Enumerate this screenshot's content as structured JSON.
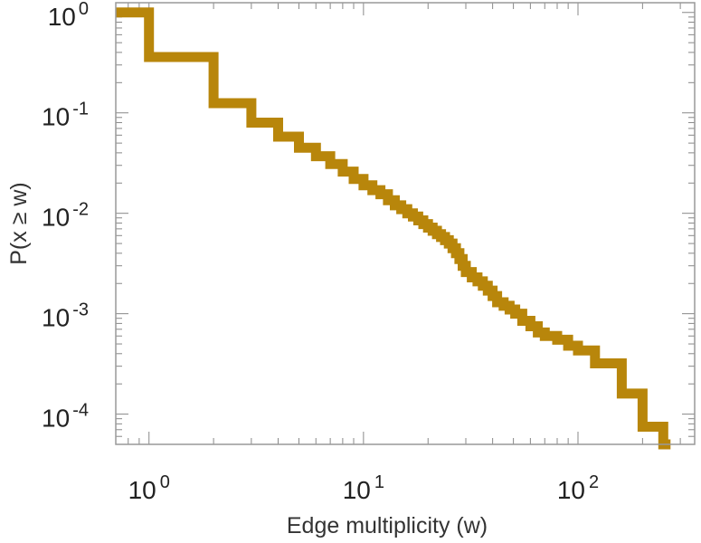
{
  "chart_data": {
    "type": "line",
    "title": "",
    "xlabel": "Edge multiplicity (w)",
    "ylabel": "P(x ≥ w)",
    "xscale": "log",
    "yscale": "log",
    "xlim": [
      0.7,
      350
    ],
    "ylim": [
      5e-05,
      1.25
    ],
    "grid": false,
    "legend": "none",
    "x_ticks": [
      {
        "base": "10",
        "exp": "0",
        "value": 1
      },
      {
        "base": "10",
        "exp": "1",
        "value": 10
      },
      {
        "base": "10",
        "exp": "2",
        "value": 100
      }
    ],
    "y_ticks": [
      {
        "base": "10",
        "exp": "0",
        "value": 1
      },
      {
        "base": "10",
        "exp": "-1",
        "value": 0.1
      },
      {
        "base": "10",
        "exp": "-2",
        "value": 0.01
      },
      {
        "base": "10",
        "exp": "-3",
        "value": 0.001
      },
      {
        "base": "10",
        "exp": "-4",
        "value": 0.0001
      }
    ],
    "series": [
      {
        "color": "#b8860b",
        "step": true,
        "x": [
          0.7,
          1,
          2,
          3,
          4,
          5,
          6,
          7,
          8,
          9,
          10,
          11,
          12,
          13,
          14,
          15,
          16,
          17,
          18,
          19,
          20,
          21,
          22,
          23,
          24,
          25,
          26,
          27,
          28,
          29,
          30,
          32,
          34,
          36,
          38,
          40,
          42,
          45,
          48,
          51,
          55,
          60,
          65,
          70,
          80,
          90,
          100,
          120,
          160,
          200,
          250
        ],
        "y": [
          1.0,
          0.36,
          0.125,
          0.08,
          0.058,
          0.045,
          0.037,
          0.031,
          0.026,
          0.022,
          0.019,
          0.017,
          0.0155,
          0.0135,
          0.012,
          0.011,
          0.01,
          0.0093,
          0.0085,
          0.0078,
          0.0072,
          0.0067,
          0.0062,
          0.0058,
          0.0054,
          0.005,
          0.0045,
          0.004,
          0.0035,
          0.003,
          0.0026,
          0.0023,
          0.0021,
          0.0019,
          0.0017,
          0.0015,
          0.0013,
          0.0012,
          0.0011,
          0.001,
          0.00085,
          0.00075,
          0.00065,
          0.0006,
          0.00055,
          0.00048,
          0.00043,
          0.00032,
          0.00016,
          7.5e-05,
          5e-05
        ]
      }
    ]
  }
}
